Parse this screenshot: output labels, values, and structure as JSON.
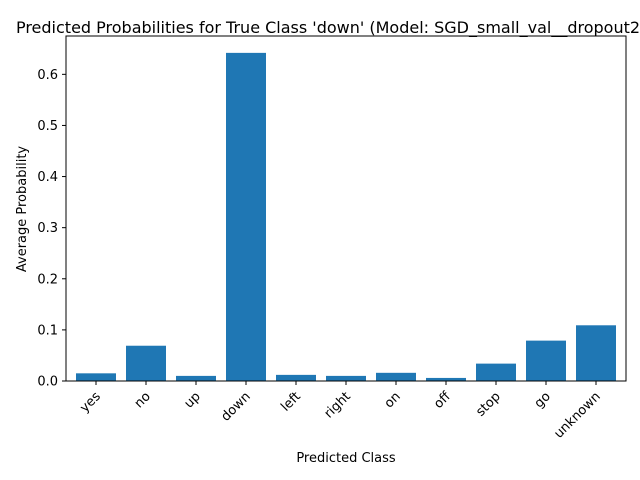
{
  "chart_data": {
    "type": "bar",
    "title": "Predicted Probabilities for True Class 'down' (Model: SGD_small_val__dropout2",
    "xlabel": "Predicted Class",
    "ylabel": "Average Probability",
    "categories": [
      "yes",
      "no",
      "up",
      "down",
      "left",
      "right",
      "on",
      "off",
      "stop",
      "go",
      "unknown"
    ],
    "values": [
      0.015,
      0.069,
      0.01,
      0.642,
      0.012,
      0.01,
      0.016,
      0.006,
      0.034,
      0.079,
      0.109
    ],
    "ylim": [
      0,
      0.675
    ],
    "yticks": [
      "0.0",
      "0.1",
      "0.2",
      "0.3",
      "0.4",
      "0.5",
      "0.6"
    ],
    "bar_color": "#1f77b4",
    "grid": false,
    "legend": "none"
  }
}
